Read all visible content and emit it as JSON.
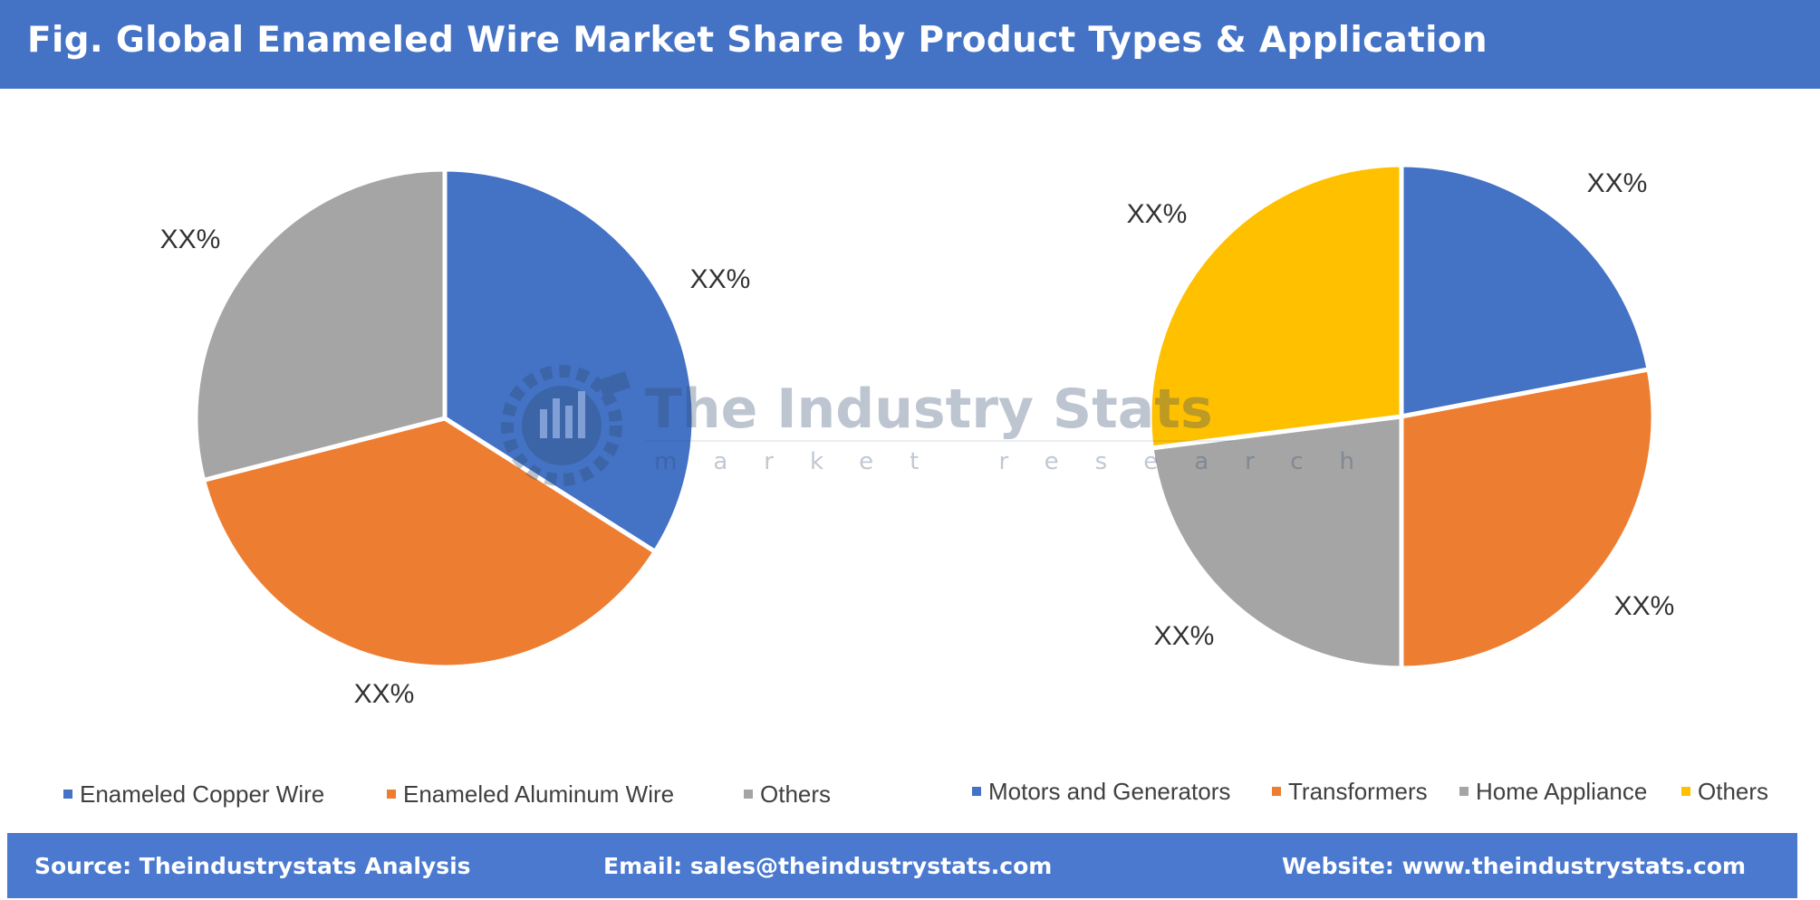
{
  "header": {
    "title": "Fig. Global Enameled Wire Market Share by Product Types & Application",
    "background": "#4472c4"
  },
  "watermark": {
    "title": "The Industry Stats",
    "subtitle": "market research",
    "icon": "gear-chart-icon"
  },
  "chart_data": [
    {
      "type": "pie",
      "name": "product-types",
      "slices": [
        {
          "label": "Enameled Copper Wire",
          "value": 34,
          "color": "#4472c4",
          "data_label": "XX%"
        },
        {
          "label": "Enameled Aluminum Wire",
          "value": 37,
          "color": "#ed7d31",
          "data_label": "XX%"
        },
        {
          "label": "Others",
          "value": 29,
          "color": "#a5a5a5",
          "data_label": "XX%"
        }
      ],
      "legend_placement": "bottom"
    },
    {
      "type": "pie",
      "name": "application",
      "slices": [
        {
          "label": "Motors and Generators",
          "value": 22,
          "color": "#4472c4",
          "data_label": "XX%"
        },
        {
          "label": "Transformers",
          "value": 28,
          "color": "#ed7d31",
          "data_label": "XX%"
        },
        {
          "label": "Home Appliance",
          "value": 23,
          "color": "#a5a5a5",
          "data_label": "XX%"
        },
        {
          "label": "Others",
          "value": 27,
          "color": "#ffc000",
          "data_label": "XX%"
        }
      ],
      "legend_placement": "bottom"
    }
  ],
  "footer": {
    "source": "Source: Theindustrystats Analysis",
    "email": "Email: sales@theindustrystats.com",
    "website": "Website: www.theindustrystats.com",
    "background": "#4a79cf"
  }
}
